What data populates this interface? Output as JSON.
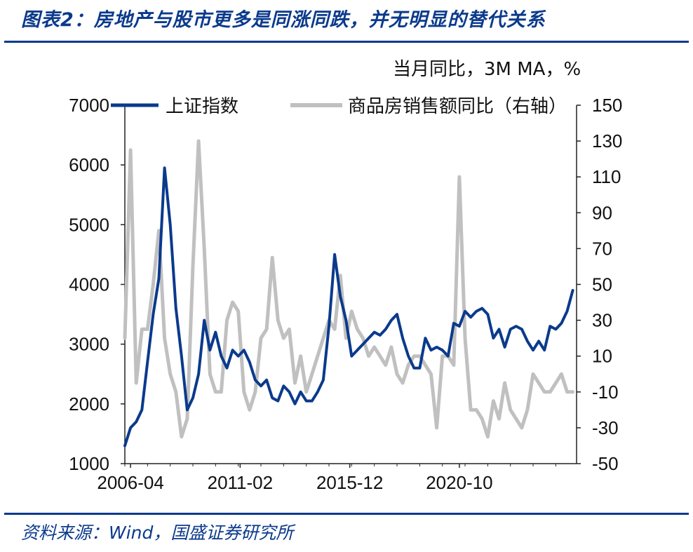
{
  "header": {
    "title": "图表2：房地产与股市更多是同涨同跌，并无明显的替代关系",
    "unit_note": "当月同比，3M MA，%"
  },
  "footer": {
    "source": "资料来源：Wind，国盛证券研究所"
  },
  "colors": {
    "brand": "#0b3a8c",
    "series_index": "#0b3a8c",
    "series_sales": "#c0c0c0"
  },
  "chart_data": {
    "type": "line",
    "x_tick_labels": [
      "2006-04",
      "2011-02",
      "2015-12",
      "2020-10"
    ],
    "x_range": [
      "2006-01",
      "2025-12"
    ],
    "y_left": {
      "ticks": [
        "1000",
        "2000",
        "3000",
        "4000",
        "5000",
        "6000",
        "7000"
      ],
      "range": [
        1000,
        7000
      ]
    },
    "y_right": {
      "ticks": [
        "-50",
        "-30",
        "-10",
        "10",
        "30",
        "50",
        "70",
        "90",
        "110",
        "130",
        "150"
      ],
      "range": [
        -50,
        150
      ]
    },
    "legend_position": "top",
    "grid": false,
    "series": [
      {
        "name": "上证指数",
        "axis": "left",
        "x": [
          "2006-01",
          "2006-04",
          "2006-07",
          "2006-10",
          "2007-01",
          "2007-04",
          "2007-07",
          "2007-10",
          "2008-01",
          "2008-04",
          "2008-07",
          "2008-10",
          "2009-01",
          "2009-04",
          "2009-07",
          "2009-10",
          "2010-01",
          "2010-04",
          "2010-07",
          "2010-10",
          "2011-01",
          "2011-04",
          "2011-07",
          "2011-10",
          "2012-01",
          "2012-04",
          "2012-07",
          "2012-10",
          "2013-01",
          "2013-04",
          "2013-07",
          "2013-10",
          "2014-01",
          "2014-04",
          "2014-07",
          "2014-10",
          "2015-01",
          "2015-04",
          "2015-07",
          "2015-10",
          "2016-01",
          "2016-04",
          "2016-07",
          "2016-10",
          "2017-01",
          "2017-04",
          "2017-07",
          "2017-10",
          "2018-01",
          "2018-04",
          "2018-07",
          "2018-10",
          "2019-01",
          "2019-04",
          "2019-07",
          "2019-10",
          "2020-01",
          "2020-04",
          "2020-07",
          "2020-10",
          "2021-01",
          "2021-04",
          "2021-07",
          "2021-10",
          "2022-01",
          "2022-04",
          "2022-07",
          "2022-10",
          "2023-01",
          "2023-04",
          "2023-07",
          "2023-10",
          "2024-01",
          "2024-04",
          "2024-07",
          "2024-10",
          "2025-01",
          "2025-04",
          "2025-07",
          "2025-10"
        ],
        "values": [
          1300,
          1600,
          1700,
          1900,
          2700,
          3500,
          4100,
          5950,
          5000,
          3600,
          2800,
          1900,
          2100,
          2500,
          3400,
          2900,
          3200,
          2800,
          2600,
          2900,
          2800,
          2900,
          2700,
          2400,
          2300,
          2400,
          2100,
          2050,
          2300,
          2200,
          2000,
          2200,
          2050,
          2050,
          2200,
          2400,
          3300,
          4500,
          3800,
          3400,
          2800,
          2900,
          3000,
          3100,
          3200,
          3150,
          3250,
          3400,
          3500,
          3100,
          2800,
          2600,
          2600,
          3100,
          2900,
          2950,
          2900,
          2800,
          3350,
          3300,
          3550,
          3450,
          3550,
          3600,
          3500,
          3100,
          3250,
          2950,
          3250,
          3300,
          3250,
          3050,
          2900,
          3050,
          2900,
          3300,
          3250,
          3350,
          3550,
          3900
        ]
      },
      {
        "name": "商品房销售额同比（右轴）",
        "axis": "right",
        "x": [
          "2006-01",
          "2006-04",
          "2006-07",
          "2006-10",
          "2007-01",
          "2007-04",
          "2007-07",
          "2007-10",
          "2008-01",
          "2008-04",
          "2008-07",
          "2008-10",
          "2009-01",
          "2009-04",
          "2009-07",
          "2009-10",
          "2010-01",
          "2010-04",
          "2010-07",
          "2010-10",
          "2011-01",
          "2011-04",
          "2011-07",
          "2011-10",
          "2012-01",
          "2012-04",
          "2012-07",
          "2012-10",
          "2013-01",
          "2013-04",
          "2013-07",
          "2013-10",
          "2014-01",
          "2014-04",
          "2014-07",
          "2014-10",
          "2015-01",
          "2015-04",
          "2015-07",
          "2015-10",
          "2016-01",
          "2016-04",
          "2016-07",
          "2016-10",
          "2017-01",
          "2017-04",
          "2017-07",
          "2017-10",
          "2018-01",
          "2018-04",
          "2018-07",
          "2018-10",
          "2019-01",
          "2019-04",
          "2019-07",
          "2019-10",
          "2020-01",
          "2020-04",
          "2020-07",
          "2020-10",
          "2021-01",
          "2021-04",
          "2021-07",
          "2021-10",
          "2022-01",
          "2022-04",
          "2022-07",
          "2022-10",
          "2023-01",
          "2023-04",
          "2023-07",
          "2023-10",
          "2024-01",
          "2024-04",
          "2024-07",
          "2024-10",
          "2025-01",
          "2025-04",
          "2025-07",
          "2025-10"
        ],
        "values": [
          20,
          125,
          -5,
          25,
          25,
          50,
          80,
          20,
          0,
          -10,
          -35,
          -25,
          60,
          130,
          70,
          0,
          -10,
          -10,
          30,
          40,
          35,
          -10,
          -20,
          -10,
          20,
          25,
          65,
          30,
          20,
          25,
          -5,
          10,
          -10,
          0,
          10,
          20,
          30,
          25,
          55,
          20,
          35,
          25,
          20,
          10,
          15,
          10,
          5,
          15,
          0,
          -5,
          5,
          10,
          10,
          5,
          0,
          -30,
          10,
          10,
          5,
          110,
          20,
          -20,
          -20,
          -25,
          -35,
          -15,
          -25,
          -5,
          -20,
          -25,
          -30,
          -20,
          0,
          -5,
          -10,
          -10,
          -5,
          0,
          -10,
          -10
        ]
      }
    ]
  }
}
